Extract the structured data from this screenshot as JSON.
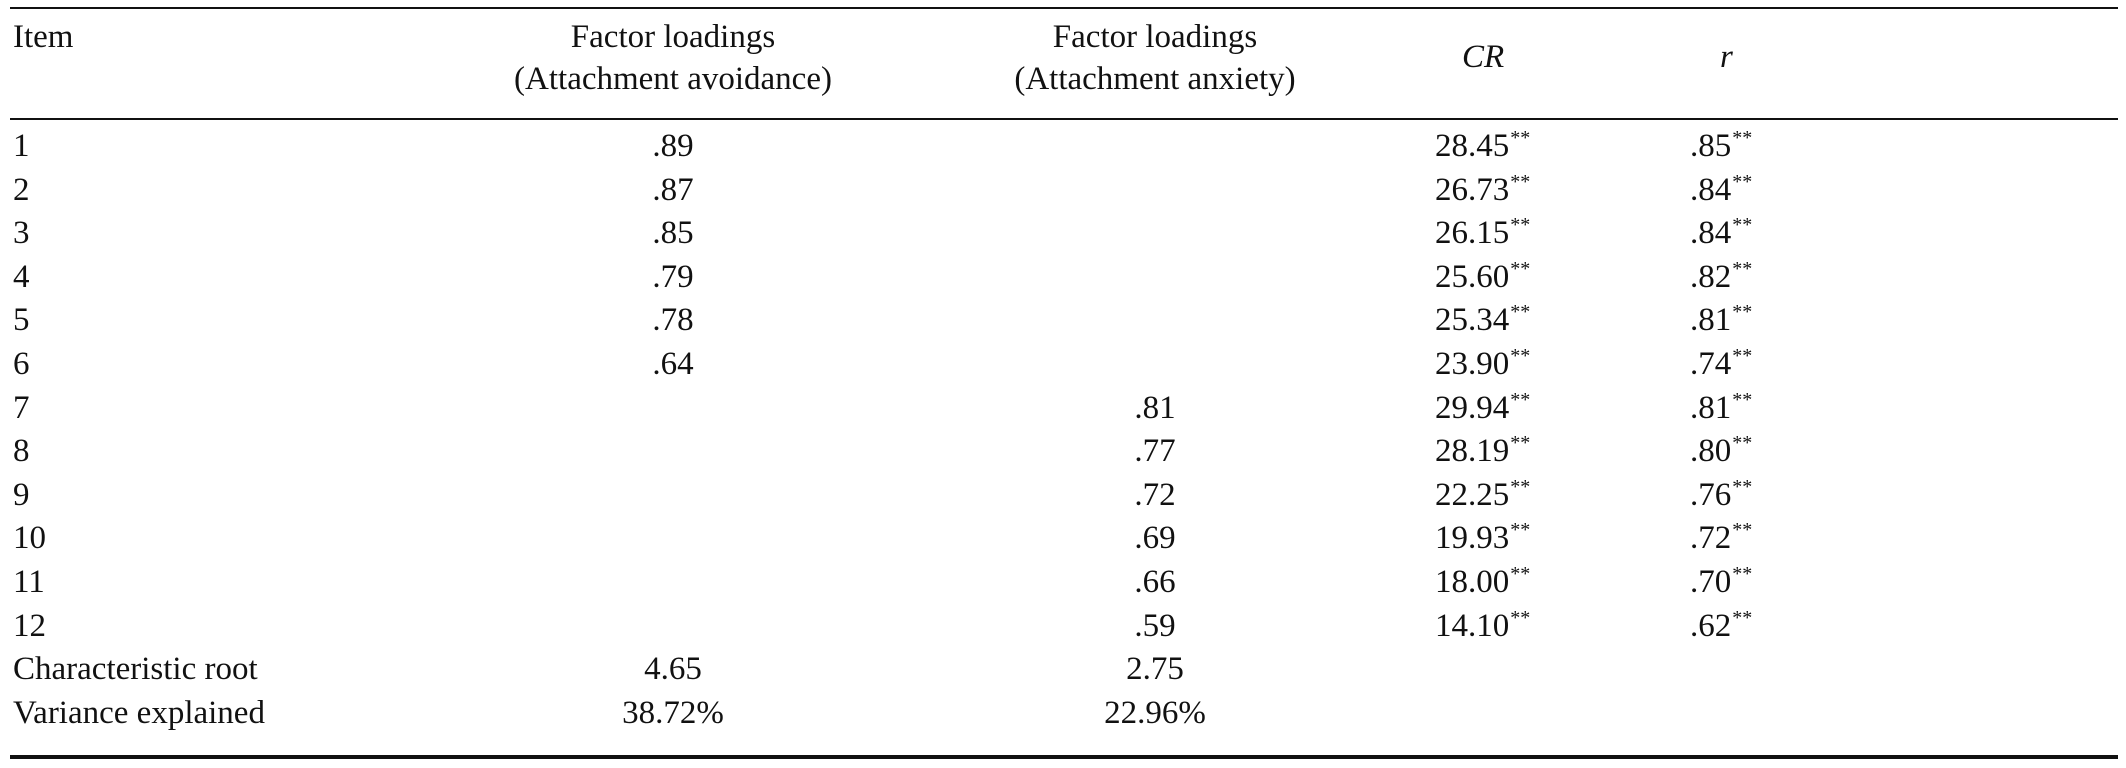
{
  "table": {
    "headers": {
      "item": "Item",
      "avoidance_line1": "Factor loadings",
      "avoidance_line2": "(Attachment avoidance)",
      "anxiety_line1": "Factor loadings",
      "anxiety_line2": "(Attachment anxiety)",
      "cr": "CR",
      "r": "r"
    },
    "rows": [
      {
        "item": "1",
        "avoidance": ".89",
        "anxiety": "",
        "cr": "28.45",
        "cr_sig": "**",
        "r": ".85",
        "r_sig": "**"
      },
      {
        "item": "2",
        "avoidance": ".87",
        "anxiety": "",
        "cr": "26.73",
        "cr_sig": "**",
        "r": ".84",
        "r_sig": "**"
      },
      {
        "item": "3",
        "avoidance": ".85",
        "anxiety": "",
        "cr": "26.15",
        "cr_sig": "**",
        "r": ".84",
        "r_sig": "**"
      },
      {
        "item": "4",
        "avoidance": ".79",
        "anxiety": "",
        "cr": "25.60",
        "cr_sig": "**",
        "r": ".82",
        "r_sig": "**"
      },
      {
        "item": "5",
        "avoidance": ".78",
        "anxiety": "",
        "cr": "25.34",
        "cr_sig": "**",
        "r": ".81",
        "r_sig": "**"
      },
      {
        "item": "6",
        "avoidance": ".64",
        "anxiety": "",
        "cr": "23.90",
        "cr_sig": "**",
        "r": ".74",
        "r_sig": "**"
      },
      {
        "item": "7",
        "avoidance": "",
        "anxiety": ".81",
        "cr": "29.94",
        "cr_sig": "**",
        "r": ".81",
        "r_sig": "**"
      },
      {
        "item": "8",
        "avoidance": "",
        "anxiety": ".77",
        "cr": "28.19",
        "cr_sig": "**",
        "r": ".80",
        "r_sig": "**"
      },
      {
        "item": "9",
        "avoidance": "",
        "anxiety": ".72",
        "cr": "22.25",
        "cr_sig": "**",
        "r": ".76",
        "r_sig": "**"
      },
      {
        "item": "10",
        "avoidance": "",
        "anxiety": ".69",
        "cr": "19.93",
        "cr_sig": "**",
        "r": ".72",
        "r_sig": "**"
      },
      {
        "item": "11",
        "avoidance": "",
        "anxiety": ".66",
        "cr": "18.00",
        "cr_sig": "**",
        "r": ".70",
        "r_sig": "**"
      },
      {
        "item": "12",
        "avoidance": "",
        "anxiety": ".59",
        "cr": "14.10",
        "cr_sig": "**",
        "r": ".62",
        "r_sig": "**"
      },
      {
        "item": "Characteristic root",
        "avoidance": "4.65",
        "anxiety": "2.75",
        "cr": "",
        "cr_sig": "",
        "r": "",
        "r_sig": ""
      },
      {
        "item": "Variance explained",
        "avoidance": "38.72%",
        "anxiety": "22.96%",
        "cr": "",
        "cr_sig": "",
        "r": "",
        "r_sig": ""
      }
    ]
  }
}
